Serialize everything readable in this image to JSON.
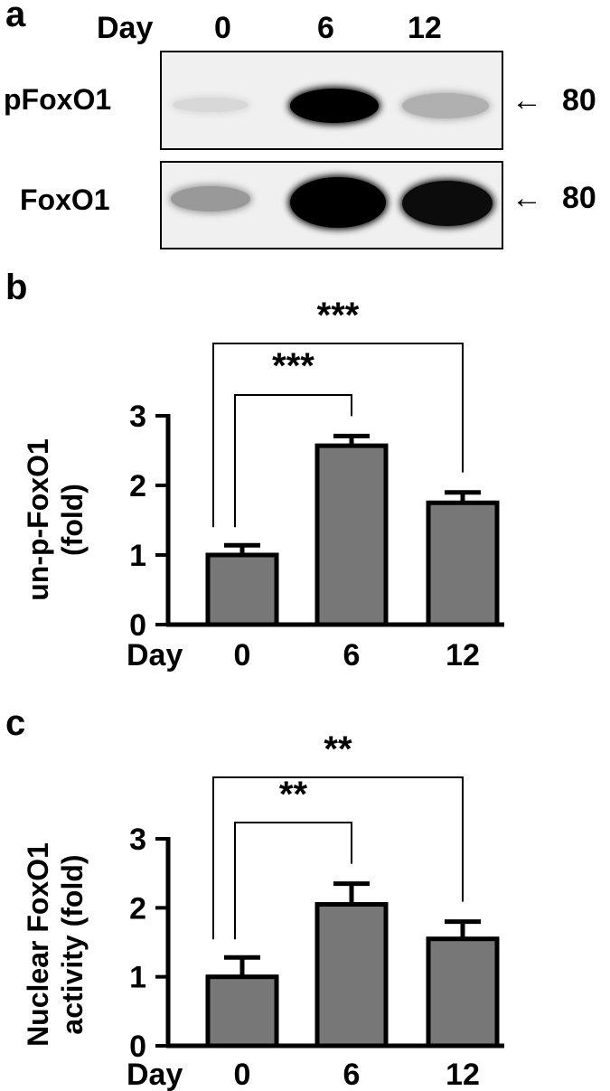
{
  "panel_a": {
    "letter": "a",
    "lane_header": "Day",
    "lanes": [
      "0",
      "6",
      "12"
    ],
    "blots": [
      {
        "label": "pFoxO1",
        "marker": "80",
        "intensity": [
          0.08,
          1.0,
          0.25
        ]
      },
      {
        "label": "FoxO1",
        "marker": "80",
        "intensity": [
          0.35,
          1.0,
          0.95
        ]
      }
    ],
    "arrow_glyph": "←"
  },
  "chart_data": [
    {
      "panel": "b",
      "type": "bar",
      "categories": [
        "0",
        "6",
        "12"
      ],
      "category_axis_label": "Day",
      "values": [
        1.0,
        2.57,
        1.75
      ],
      "errors": [
        0.14,
        0.14,
        0.15
      ],
      "ylabel_lines": [
        "un-p-FoxO1",
        "(fold)"
      ],
      "ylim": [
        0,
        3
      ],
      "yticks": [
        "0",
        "1",
        "2",
        "3"
      ],
      "bar_color": "#777777",
      "significance": [
        {
          "from": "0",
          "to": "6",
          "label": "***"
        },
        {
          "from": "0",
          "to": "12",
          "label": "***"
        }
      ]
    },
    {
      "panel": "c",
      "type": "bar",
      "categories": [
        "0",
        "6",
        "12"
      ],
      "category_axis_label": "Day",
      "values": [
        1.0,
        2.05,
        1.55
      ],
      "errors": [
        0.28,
        0.3,
        0.25
      ],
      "ylabel_lines": [
        "Nuclear FoxO1",
        "activity (fold)"
      ],
      "ylim": [
        0,
        3
      ],
      "yticks": [
        "0",
        "1",
        "2",
        "3"
      ],
      "bar_color": "#777777",
      "significance": [
        {
          "from": "0",
          "to": "6",
          "label": "**"
        },
        {
          "from": "0",
          "to": "12",
          "label": "**"
        }
      ]
    }
  ]
}
